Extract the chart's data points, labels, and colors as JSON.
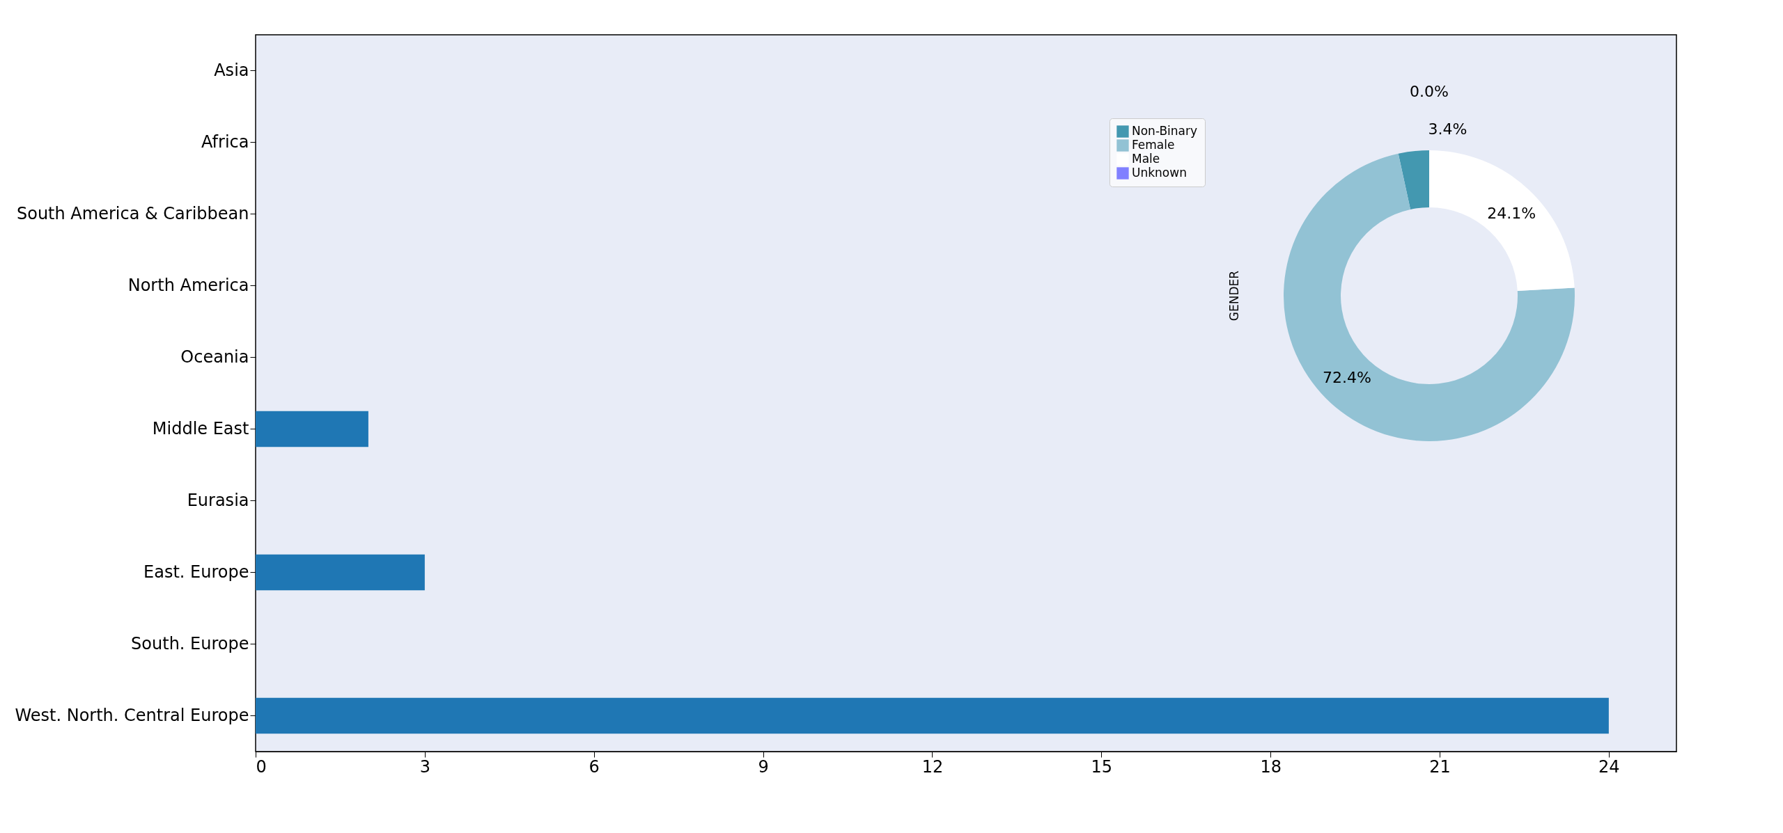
{
  "chart_data": [
    {
      "type": "bar",
      "orientation": "horizontal",
      "categories": [
        "Asia",
        "Africa",
        "South America & Caribbean",
        "North America",
        "Oceania",
        "Middle East",
        "Eurasia",
        "East. Europe",
        "South. Europe",
        "West. North. Central Europe"
      ],
      "values": [
        0,
        0,
        0,
        0,
        0,
        2,
        0,
        3,
        0,
        24
      ],
      "color": "#1f77b4",
      "xlim": [
        0,
        25.2
      ],
      "xticks": [
        0,
        3,
        6,
        9,
        12,
        15,
        18,
        21,
        24
      ],
      "grid": false
    },
    {
      "type": "donut",
      "ylabel": "GENDER",
      "categories": [
        "Non-Binary",
        "Female",
        "Male",
        "Unknown"
      ],
      "values": [
        3.4,
        72.4,
        24.1,
        0.0
      ],
      "colors": [
        "#4398b0",
        "#92c2d4",
        "#ffffff",
        "#8080ff"
      ],
      "value_labels": [
        "3.4%",
        "72.4%",
        "24.1%",
        "0.0%"
      ],
      "legend": "top left"
    }
  ]
}
